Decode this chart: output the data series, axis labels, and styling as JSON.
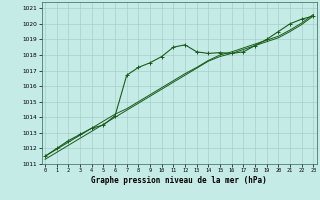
{
  "xlabel": "Graphe pression niveau de la mer (hPa)",
  "background_color": "#c5ebe6",
  "grid_color": "#a0c8c0",
  "line_color": "#1a5c1a",
  "xlim": [
    -0.3,
    23.3
  ],
  "ylim": [
    1011.0,
    1021.4
  ],
  "yticks": [
    1011,
    1012,
    1013,
    1014,
    1015,
    1016,
    1017,
    1018,
    1019,
    1020,
    1021
  ],
  "xticks": [
    0,
    1,
    2,
    3,
    4,
    5,
    6,
    7,
    8,
    9,
    10,
    11,
    12,
    13,
    14,
    15,
    16,
    17,
    18,
    19,
    20,
    21,
    22,
    23
  ],
  "hours": [
    0,
    1,
    2,
    3,
    4,
    5,
    6,
    7,
    8,
    9,
    10,
    11,
    12,
    13,
    14,
    15,
    16,
    17,
    18,
    19,
    20,
    21,
    22,
    23
  ],
  "pressure_main": [
    1011.5,
    1012.0,
    1012.5,
    1012.9,
    1013.3,
    1013.5,
    1014.1,
    1016.7,
    1017.2,
    1017.5,
    1017.9,
    1018.5,
    1018.65,
    1018.2,
    1018.1,
    1018.15,
    1018.1,
    1018.2,
    1018.6,
    1019.0,
    1019.5,
    1020.0,
    1020.3,
    1020.5
  ],
  "pressure_lin1": [
    1011.3,
    1011.75,
    1012.2,
    1012.65,
    1013.1,
    1013.55,
    1014.0,
    1014.45,
    1014.9,
    1015.35,
    1015.8,
    1016.25,
    1016.7,
    1017.15,
    1017.6,
    1017.9,
    1018.1,
    1018.35,
    1018.6,
    1018.85,
    1019.1,
    1019.5,
    1019.95,
    1020.5
  ],
  "pressure_lin2": [
    1011.5,
    1011.95,
    1012.4,
    1012.85,
    1013.3,
    1013.75,
    1014.2,
    1014.55,
    1015.0,
    1015.45,
    1015.9,
    1016.35,
    1016.8,
    1017.2,
    1017.65,
    1018.0,
    1018.2,
    1018.45,
    1018.7,
    1018.95,
    1019.2,
    1019.6,
    1020.05,
    1020.6
  ]
}
